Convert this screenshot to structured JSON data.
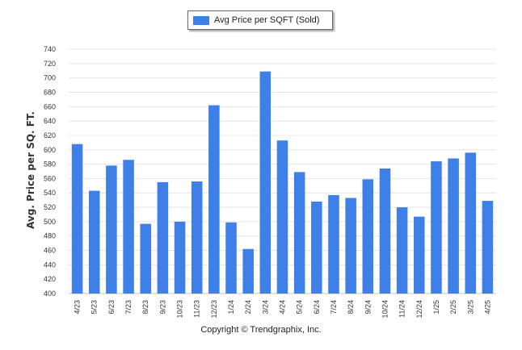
{
  "legend": {
    "label": "Avg Price per SQFT (Sold)",
    "color": "#3f7fe8"
  },
  "copyright": "Copyright © Trendgraphix, Inc.",
  "chart_data": {
    "type": "bar",
    "title": "",
    "xlabel": "",
    "ylabel": "Avg. Price per SQ. FT.",
    "ylim": [
      400,
      740
    ],
    "ytick_step": 20,
    "grid": true,
    "legend_position": "top-center",
    "bar_color": "#3f7fe8",
    "categories": [
      "4/23",
      "5/23",
      "6/23",
      "7/23",
      "8/23",
      "9/23",
      "10/23",
      "11/23",
      "12/23",
      "1/24",
      "2/24",
      "3/24",
      "4/24",
      "5/24",
      "6/24",
      "7/24",
      "8/24",
      "9/24",
      "10/24",
      "11/24",
      "12/24",
      "1/25",
      "2/25",
      "3/25",
      "4/25"
    ],
    "series": [
      {
        "name": "Avg Price per SQFT (Sold)",
        "values": [
          608,
          543,
          578,
          586,
          497,
          555,
          500,
          556,
          662,
          499,
          462,
          709,
          613,
          569,
          528,
          537,
          533,
          559,
          574,
          520,
          507,
          584,
          588,
          596,
          529
        ]
      }
    ]
  }
}
